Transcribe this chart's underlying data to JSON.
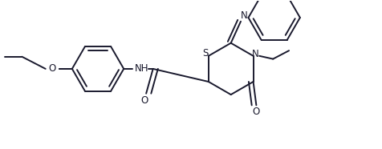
{
  "background_color": "#ffffff",
  "line_color": "#1a1a2e",
  "line_width": 1.4,
  "font_size": 8.5,
  "figsize": [
    4.76,
    1.86
  ],
  "dpi": 100,
  "xlim": [
    0,
    10
  ],
  "ylim": [
    0,
    3.9
  ]
}
